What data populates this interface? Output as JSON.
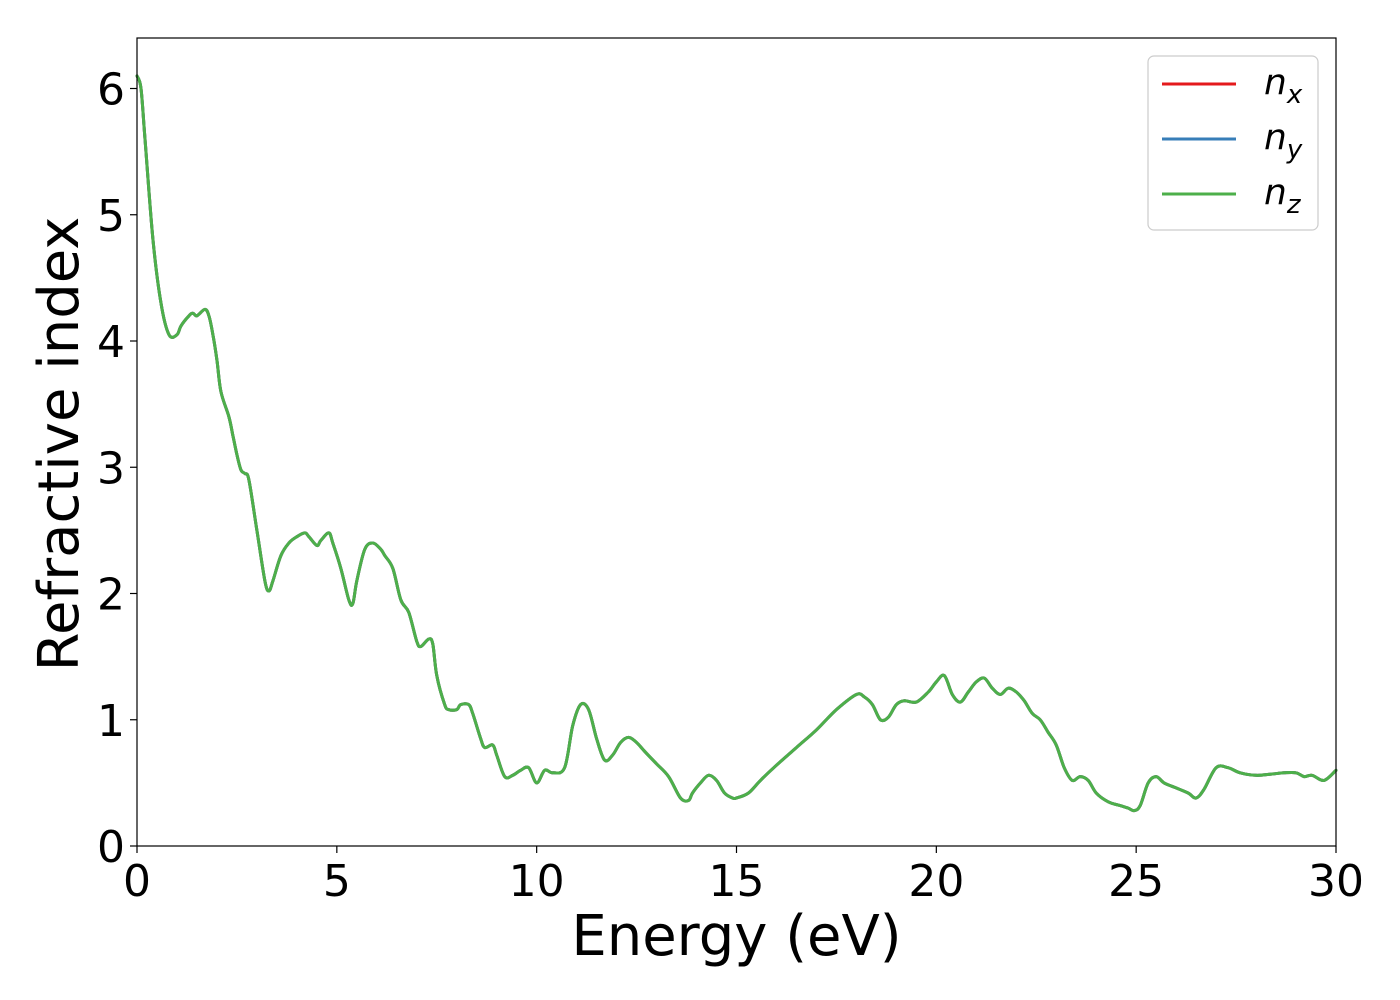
{
  "chart_data": {
    "type": "line",
    "xlabel": "Energy (eV)",
    "ylabel": "Refractive index",
    "xlim": [
      0,
      30
    ],
    "ylim": [
      0,
      6.4
    ],
    "xticks": [
      "0",
      "5",
      "10",
      "15",
      "20",
      "25",
      "30"
    ],
    "yticks": [
      "0",
      "1",
      "2",
      "3",
      "4",
      "5",
      "6"
    ],
    "grid": false,
    "legend_position": "top-right",
    "series": [
      {
        "name": "n_x",
        "legend_base": "n",
        "legend_sub": "x",
        "color": "#e41a1c"
      },
      {
        "name": "n_y",
        "legend_base": "n",
        "legend_sub": "y",
        "color": "#377eb8"
      },
      {
        "name": "n_z",
        "legend_base": "n",
        "legend_sub": "z",
        "color": "#4daf4a"
      }
    ],
    "x": [
      0,
      0.1,
      0.2,
      0.4,
      0.6,
      0.8,
      1.0,
      1.1,
      1.3,
      1.4,
      1.5,
      1.7,
      1.8,
      1.9,
      2.0,
      2.1,
      2.3,
      2.4,
      2.5,
      2.6,
      2.7,
      2.8,
      3.0,
      3.2,
      3.3,
      3.4,
      3.6,
      3.8,
      4.0,
      4.2,
      4.3,
      4.5,
      4.6,
      4.8,
      4.9,
      5.1,
      5.3,
      5.4,
      5.5,
      5.7,
      5.9,
      6.1,
      6.2,
      6.4,
      6.6,
      6.8,
      7.0,
      7.1,
      7.3,
      7.4,
      7.5,
      7.7,
      7.8,
      8.0,
      8.1,
      8.3,
      8.4,
      8.6,
      8.7,
      8.9,
      9.0,
      9.2,
      9.4,
      9.6,
      9.8,
      10.0,
      10.2,
      10.4,
      10.7,
      10.9,
      11.1,
      11.3,
      11.5,
      11.7,
      11.9,
      12.1,
      12.3,
      12.5,
      12.7,
      13.0,
      13.3,
      13.6,
      13.8,
      13.9,
      14.1,
      14.3,
      14.5,
      14.7,
      14.9,
      15.0,
      15.3,
      15.6,
      16.0,
      16.5,
      17.0,
      17.5,
      18.0,
      18.2,
      18.4,
      18.6,
      18.8,
      19.0,
      19.2,
      19.5,
      19.8,
      20.0,
      20.2,
      20.4,
      20.6,
      20.8,
      21.0,
      21.2,
      21.4,
      21.6,
      21.8,
      22.0,
      22.2,
      22.4,
      22.6,
      22.8,
      23.0,
      23.2,
      23.4,
      23.6,
      23.8,
      24.0,
      24.3,
      24.6,
      24.8,
      24.95,
      25.1,
      25.3,
      25.5,
      25.7,
      26.0,
      26.3,
      26.5,
      26.7,
      27.0,
      27.3,
      27.6,
      28.0,
      28.4,
      28.7,
      29.0,
      29.2,
      29.4,
      29.7,
      30.0
    ],
    "values": [
      6.1,
      6.0,
      5.6,
      4.8,
      4.3,
      4.05,
      4.05,
      4.12,
      4.2,
      4.22,
      4.2,
      4.25,
      4.2,
      4.05,
      3.85,
      3.6,
      3.4,
      3.25,
      3.1,
      2.98,
      2.95,
      2.9,
      2.5,
      2.1,
      2.02,
      2.1,
      2.3,
      2.4,
      2.45,
      2.48,
      2.45,
      2.38,
      2.42,
      2.48,
      2.4,
      2.2,
      1.95,
      1.92,
      2.1,
      2.35,
      2.4,
      2.35,
      2.3,
      2.2,
      1.95,
      1.85,
      1.62,
      1.58,
      1.64,
      1.6,
      1.35,
      1.12,
      1.08,
      1.08,
      1.12,
      1.12,
      1.05,
      0.85,
      0.78,
      0.8,
      0.72,
      0.55,
      0.56,
      0.6,
      0.62,
      0.5,
      0.6,
      0.58,
      0.62,
      0.95,
      1.12,
      1.08,
      0.85,
      0.68,
      0.72,
      0.82,
      0.86,
      0.82,
      0.75,
      0.65,
      0.55,
      0.38,
      0.36,
      0.42,
      0.5,
      0.56,
      0.52,
      0.42,
      0.38,
      0.38,
      0.42,
      0.52,
      0.64,
      0.78,
      0.92,
      1.08,
      1.2,
      1.18,
      1.12,
      1.0,
      1.02,
      1.12,
      1.15,
      1.14,
      1.22,
      1.3,
      1.35,
      1.2,
      1.14,
      1.22,
      1.3,
      1.33,
      1.25,
      1.2,
      1.25,
      1.22,
      1.15,
      1.05,
      1.0,
      0.9,
      0.8,
      0.62,
      0.52,
      0.55,
      0.52,
      0.42,
      0.35,
      0.32,
      0.3,
      0.28,
      0.32,
      0.5,
      0.55,
      0.5,
      0.46,
      0.42,
      0.38,
      0.45,
      0.62,
      0.62,
      0.58,
      0.56,
      0.57,
      0.58,
      0.58,
      0.55,
      0.56,
      0.52,
      0.6
    ]
  }
}
